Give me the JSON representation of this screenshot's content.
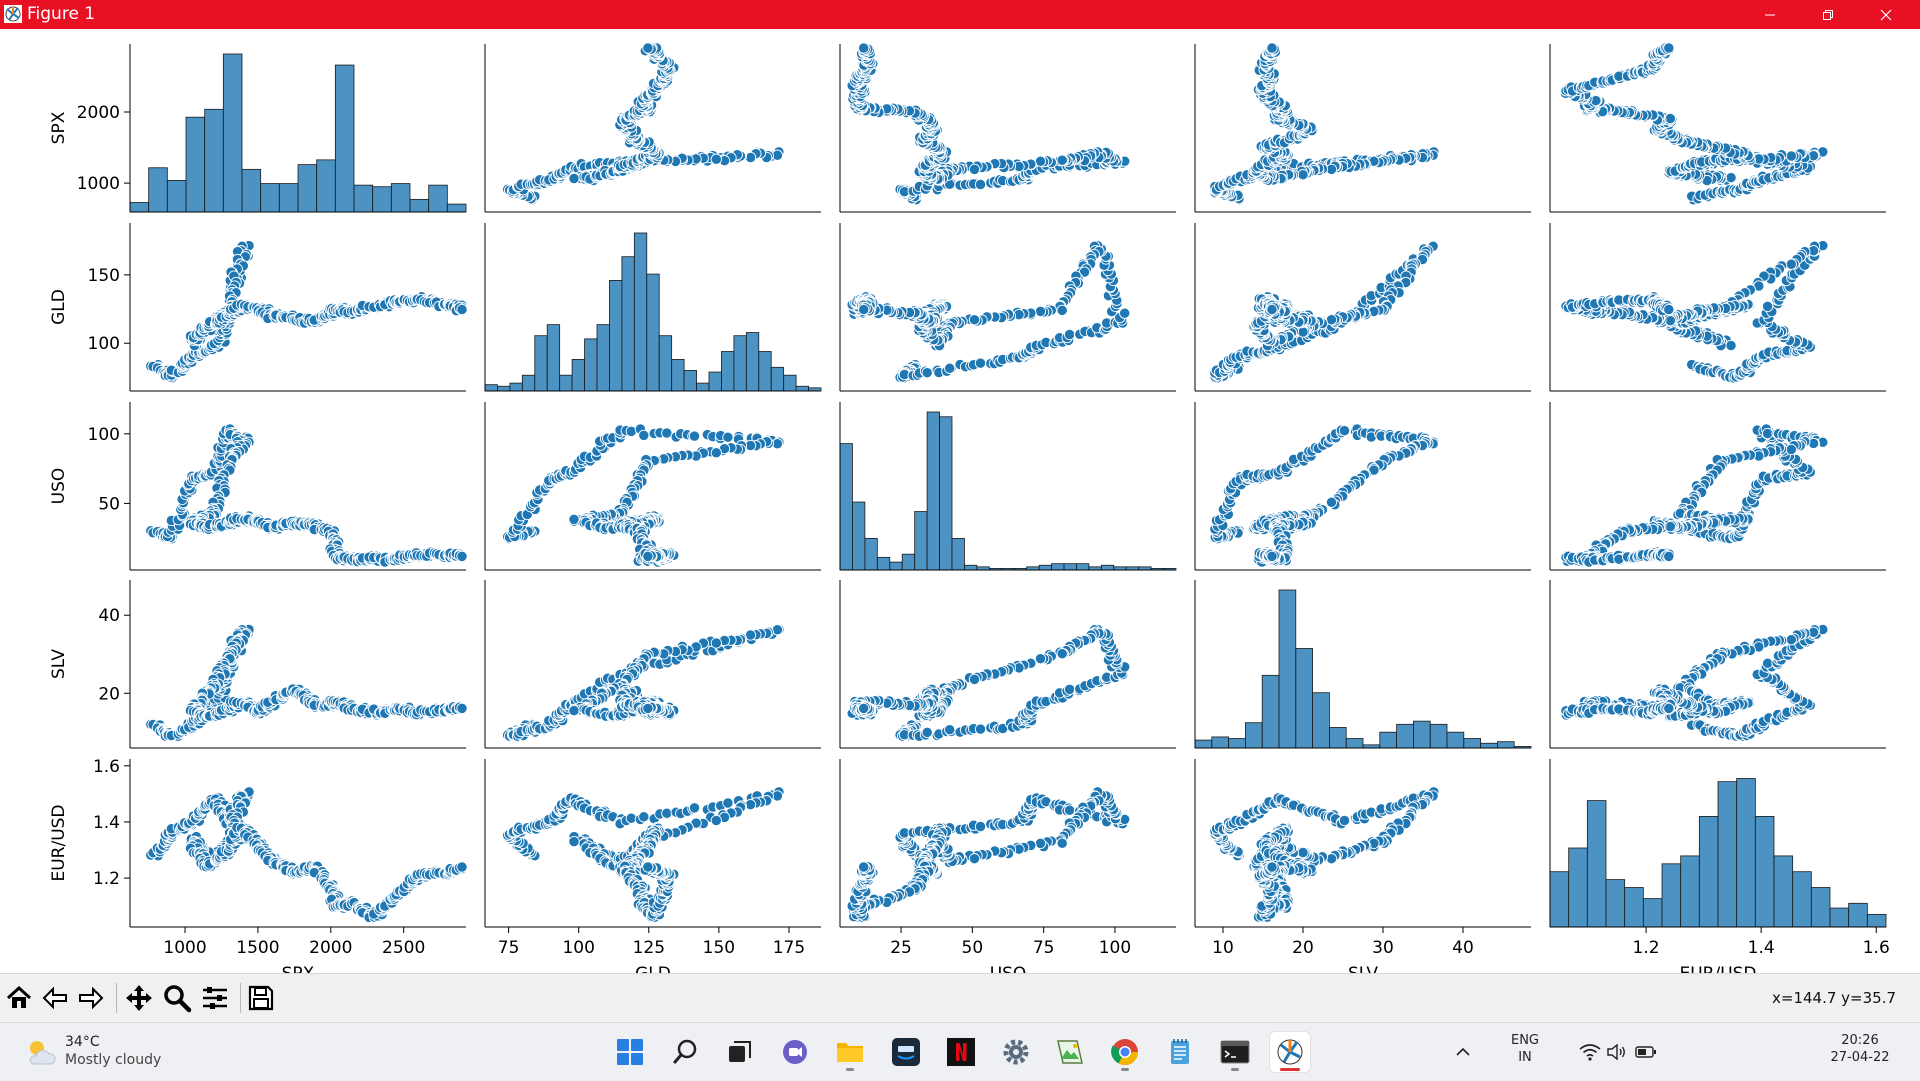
{
  "window": {
    "title": "Figure 1"
  },
  "chart_data": {
    "type": "scatter",
    "variables": [
      "SPX",
      "GLD",
      "USO",
      "SLV",
      "EUR/USD"
    ],
    "ranges": [
      [
        650,
        2900
      ],
      [
        68,
        185
      ],
      [
        5,
        120
      ],
      [
        7,
        48
      ],
      [
        1.04,
        1.61
      ]
    ],
    "xticks": [
      [
        1000,
        1500,
        2000,
        2500
      ],
      [
        75,
        100,
        125,
        150,
        175
      ],
      [
        25,
        50,
        75,
        100
      ],
      [
        10,
        20,
        30,
        40
      ],
      [
        1.2,
        1.4,
        1.6
      ]
    ],
    "xticklabels": [
      [
        "1000",
        "1500",
        "2000",
        "2500"
      ],
      [
        "75",
        "100",
        "125",
        "150",
        "175"
      ],
      [
        "25",
        "50",
        "75",
        "100"
      ],
      [
        "10",
        "20",
        "30",
        "40"
      ],
      [
        "1.2",
        "1.4",
        "1.6"
      ]
    ],
    "yticks": [
      [
        1000,
        2000
      ],
      [
        100,
        150
      ],
      [
        50,
        100
      ],
      [
        20,
        40
      ],
      [
        1.2,
        1.4,
        1.6
      ]
    ],
    "yticklabels": [
      [
        "1000",
        "2000"
      ],
      [
        "100",
        "150"
      ],
      [
        "50",
        "100"
      ],
      [
        "20",
        "40"
      ],
      [
        "1.2",
        "1.4",
        "1.6"
      ]
    ],
    "histograms": [
      [
        0.06,
        0.28,
        0.2,
        0.6,
        0.65,
        1.0,
        0.27,
        0.18,
        0.18,
        0.3,
        0.33,
        0.93,
        0.17,
        0.16,
        0.18,
        0.08,
        0.17,
        0.05
      ],
      [
        0.04,
        0.03,
        0.05,
        0.1,
        0.35,
        0.42,
        0.1,
        0.2,
        0.33,
        0.42,
        0.7,
        0.85,
        1.0,
        0.74,
        0.35,
        0.2,
        0.13,
        0.05,
        0.12,
        0.25,
        0.35,
        0.37,
        0.25,
        0.15,
        0.1,
        0.03,
        0.02
      ],
      [
        0.8,
        0.43,
        0.2,
        0.08,
        0.05,
        0.1,
        0.37,
        1.0,
        0.97,
        0.2,
        0.03,
        0.02,
        0.01,
        0.01,
        0.01,
        0.02,
        0.03,
        0.04,
        0.04,
        0.04,
        0.02,
        0.03,
        0.02,
        0.02,
        0.02,
        0.01,
        0.01
      ],
      [
        0.05,
        0.07,
        0.06,
        0.16,
        0.46,
        1.0,
        0.63,
        0.35,
        0.13,
        0.06,
        0.02,
        0.1,
        0.15,
        0.17,
        0.15,
        0.1,
        0.06,
        0.03,
        0.04,
        0.01
      ],
      [
        0.35,
        0.5,
        0.8,
        0.3,
        0.25,
        0.18,
        0.4,
        0.45,
        0.7,
        0.92,
        0.94,
        0.7,
        0.45,
        0.35,
        0.25,
        0.12,
        0.15,
        0.08
      ]
    ],
    "anchors": [
      [
        800,
        83,
        30,
        12,
        1.28
      ],
      [
        900,
        75,
        25,
        9,
        1.36
      ],
      [
        1050,
        90,
        68,
        12,
        1.4
      ],
      [
        1200,
        97,
        72,
        17,
        1.48
      ],
      [
        1300,
        115,
        102,
        25,
        1.4
      ],
      [
        1400,
        172,
        95,
        36,
        1.5
      ],
      [
        1300,
        125,
        80,
        30,
        1.33
      ],
      [
        1200,
        115,
        42,
        22,
        1.26
      ],
      [
        1050,
        100,
        38,
        16,
        1.34
      ],
      [
        1150,
        112,
        32,
        14,
        1.24
      ],
      [
        1300,
        120,
        36,
        16,
        1.3
      ],
      [
        1400,
        128,
        39,
        18,
        1.38
      ],
      [
        1500,
        125,
        37,
        15,
        1.32
      ],
      [
        1600,
        120,
        33,
        18,
        1.26
      ],
      [
        1750,
        118,
        36,
        21,
        1.22
      ],
      [
        1900,
        116,
        34,
        17,
        1.24
      ],
      [
        2000,
        122,
        30,
        17,
        1.16
      ],
      [
        2050,
        125,
        11,
        18,
        1.1
      ],
      [
        2150,
        123,
        10,
        16,
        1.11
      ],
      [
        2300,
        127,
        10,
        15,
        1.06
      ],
      [
        2450,
        130,
        10,
        16,
        1.14
      ],
      [
        2600,
        132,
        13,
        15,
        1.21
      ],
      [
        2800,
        128,
        13,
        16,
        1.22
      ],
      [
        2900,
        125,
        12,
        16,
        1.24
      ]
    ]
  },
  "toolbar": {
    "buttons": [
      "home-icon",
      "back-icon",
      "forward-icon",
      "pan-icon",
      "zoom-icon",
      "configure-icon",
      "save-icon"
    ],
    "coords": "x=144.7 y=35.7"
  },
  "taskbar": {
    "weather_temp": "34°C",
    "weather_condition": "Mostly cloudy",
    "language": "ENG",
    "region": "IN",
    "time": "20:26",
    "date": "27-04-22"
  }
}
